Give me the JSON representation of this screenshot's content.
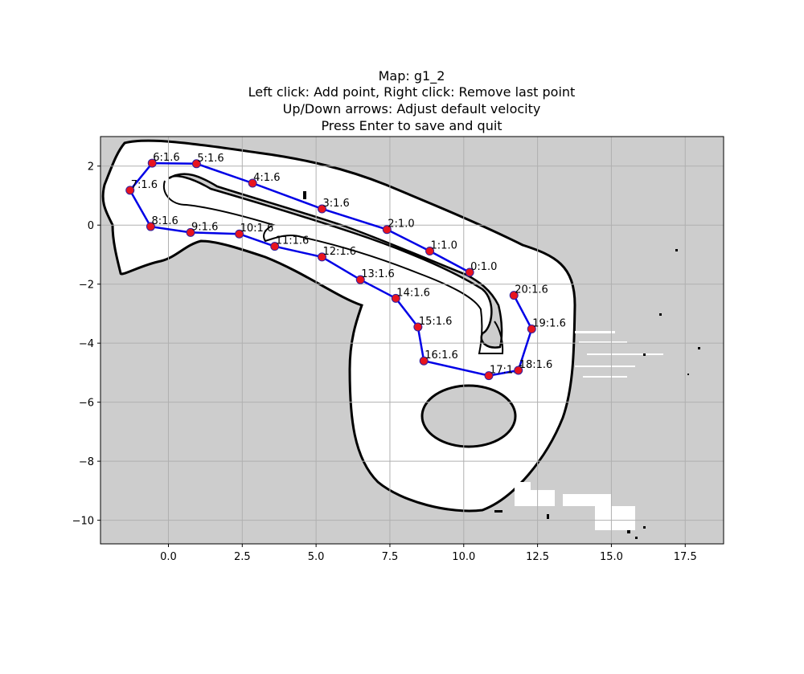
{
  "window": {
    "title_lines": [
      "Map: g1_2",
      "Left click: Add point, Right click: Remove last point",
      "Up/Down arrows: Adjust default velocity",
      "Press Enter to save and quit"
    ]
  },
  "colors": {
    "map_unknown": "#cdcdcd",
    "map_free": "#ffffff",
    "map_wall": "#000000",
    "path_line": "#0000e6",
    "waypoint_fill": "#e8141e",
    "grid": "#b0b0b0"
  },
  "chart_data": {
    "type": "scatter",
    "title": "Map: g1_2",
    "xlim": [
      -2.3,
      18.8
    ],
    "ylim": [
      -10.8,
      3.0
    ],
    "x_ticks": [
      "0.0",
      "2.5",
      "5.0",
      "7.5",
      "10.0",
      "12.5",
      "15.0",
      "17.5"
    ],
    "x_tick_values": [
      0,
      2.5,
      5,
      7.5,
      10,
      12.5,
      15,
      17.5
    ],
    "y_ticks": [
      "2",
      "0",
      "−2",
      "−4",
      "−6",
      "−8",
      "−10"
    ],
    "y_tick_values": [
      2,
      0,
      -2,
      -4,
      -6,
      -8,
      -10
    ],
    "grid": true,
    "waypoints": [
      {
        "label": "0:1.0",
        "x": 10.2,
        "y": -1.6
      },
      {
        "label": "1:1.0",
        "x": 8.85,
        "y": -0.88
      },
      {
        "label": "2:1.0",
        "x": 7.4,
        "y": -0.15
      },
      {
        "label": "3:1.6",
        "x": 5.2,
        "y": 0.55
      },
      {
        "label": "4:1.6",
        "x": 2.85,
        "y": 1.42
      },
      {
        "label": "5:1.6",
        "x": 0.95,
        "y": 2.08
      },
      {
        "label": "6:1.6",
        "x": -0.55,
        "y": 2.1
      },
      {
        "label": "7:1.6",
        "x": -1.3,
        "y": 1.18
      },
      {
        "label": "8:1.6",
        "x": -0.6,
        "y": -0.05
      },
      {
        "label": "9:1.6",
        "x": 0.75,
        "y": -0.25
      },
      {
        "label": "10:1.6",
        "x": 2.4,
        "y": -0.3
      },
      {
        "label": "11:1.6",
        "x": 3.6,
        "y": -0.72
      },
      {
        "label": "12:1.6",
        "x": 5.2,
        "y": -1.08
      },
      {
        "label": "13:1.6",
        "x": 6.5,
        "y": -1.85
      },
      {
        "label": "14:1.6",
        "x": 7.7,
        "y": -2.48
      },
      {
        "label": "15:1.6",
        "x": 8.45,
        "y": -3.45
      },
      {
        "label": "16:1.6",
        "x": 8.65,
        "y": -4.6
      },
      {
        "label": "17:1.6",
        "x": 10.85,
        "y": -5.1
      },
      {
        "label": "18:1.6",
        "x": 11.85,
        "y": -4.92
      },
      {
        "label": "19:1.6",
        "x": 12.3,
        "y": -3.52
      },
      {
        "label": "20:1.6",
        "x": 11.7,
        "y": -2.38
      }
    ]
  }
}
